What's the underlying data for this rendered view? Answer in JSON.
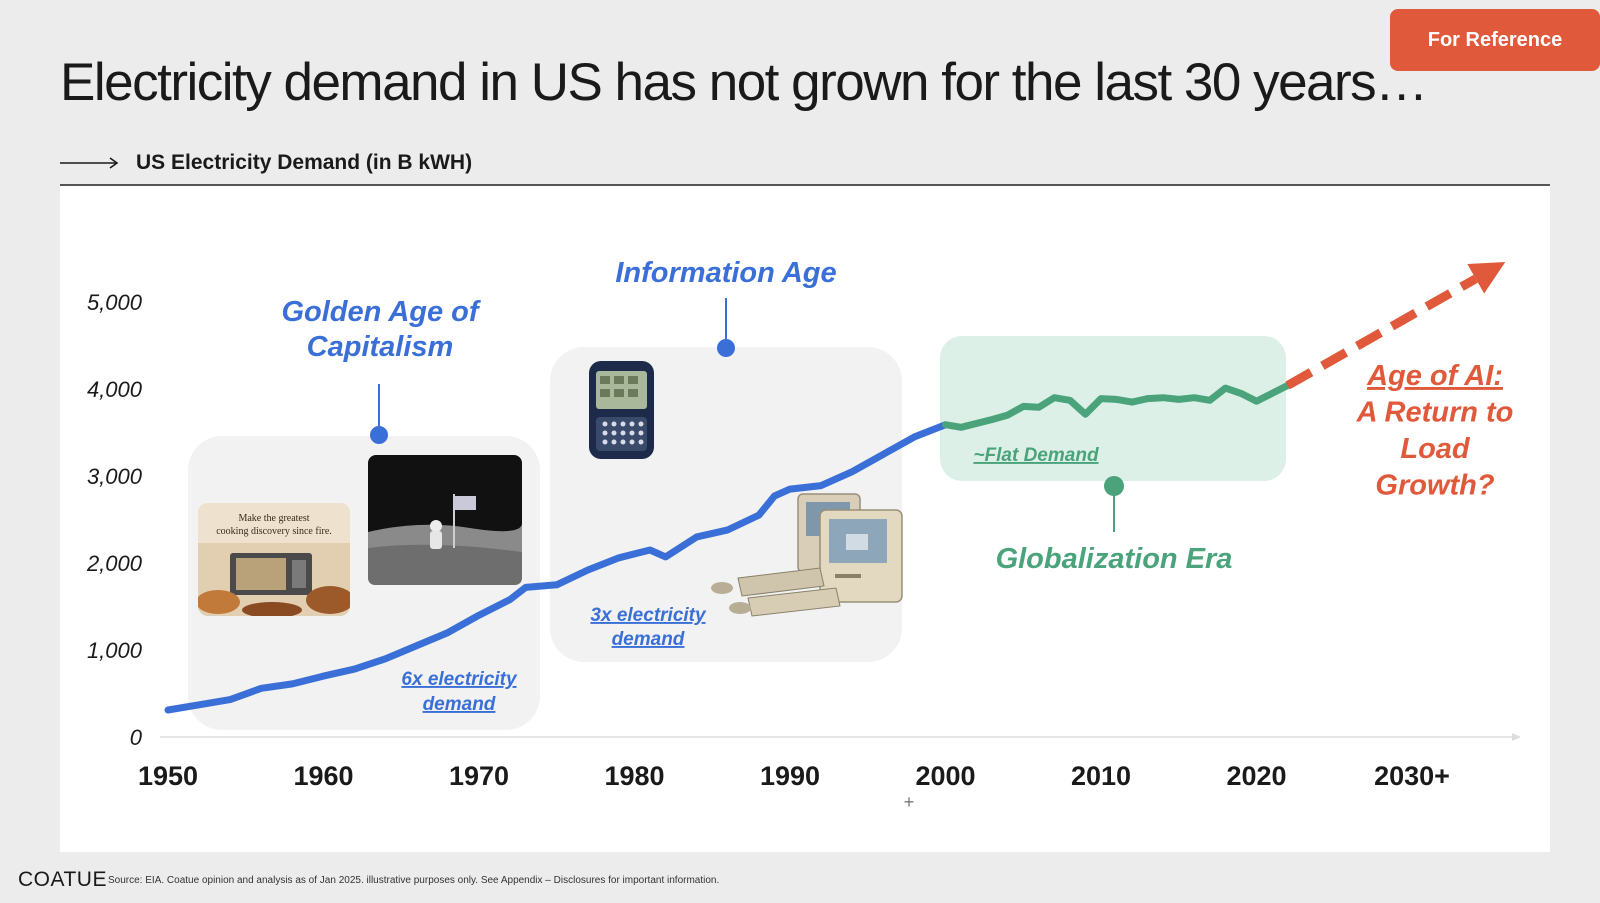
{
  "badge": "For Reference",
  "title": "Electricity demand in US has not grown for the last 30 years…",
  "footer": {
    "logo": "COATUE",
    "source": "Source: EIA. Coatue opinion and analysis as of Jan 2025. illustrative purposes only. See Appendix – Disclosures for important information."
  },
  "colors": {
    "demand_line": "#3a6fd8",
    "flat_line": "#4aa37b",
    "projection": "#e0593a",
    "era_blue": "#3a6fd8",
    "era_green": "#4aa37b"
  },
  "chart_data": {
    "type": "line",
    "title": "US Electricity Demand (in B kWH)",
    "xlabel": "",
    "ylabel": "",
    "x_ticks": [
      "1950",
      "1960",
      "1970",
      "1980",
      "1990",
      "2000",
      "2010",
      "2020",
      "2030+"
    ],
    "y_ticks": [
      "0",
      "1,000",
      "2,000",
      "3,000",
      "4,000",
      "5,000"
    ],
    "ylim": [
      0,
      5000
    ],
    "series": [
      {
        "points": [
          [
            1950,
            310
          ],
          [
            1952,
            370
          ],
          [
            1954,
            430
          ],
          [
            1956,
            560
          ],
          [
            1958,
            610
          ],
          [
            1960,
            700
          ],
          [
            1962,
            780
          ],
          [
            1964,
            900
          ],
          [
            1966,
            1050
          ],
          [
            1968,
            1200
          ],
          [
            1970,
            1400
          ],
          [
            1972,
            1580
          ],
          [
            1973,
            1720
          ],
          [
            1975,
            1750
          ],
          [
            1977,
            1920
          ],
          [
            1979,
            2060
          ],
          [
            1981,
            2150
          ],
          [
            1982,
            2070
          ],
          [
            1984,
            2300
          ],
          [
            1986,
            2380
          ],
          [
            1988,
            2550
          ],
          [
            1989,
            2770
          ],
          [
            1990,
            2850
          ],
          [
            1992,
            2890
          ],
          [
            1994,
            3050
          ],
          [
            1996,
            3250
          ],
          [
            1998,
            3450
          ],
          [
            2000,
            3590
          ]
        ]
      },
      {
        "points": [
          [
            2000,
            3590
          ],
          [
            2001,
            3560
          ],
          [
            2003,
            3650
          ],
          [
            2004,
            3700
          ],
          [
            2005,
            3800
          ],
          [
            2006,
            3790
          ],
          [
            2007,
            3900
          ],
          [
            2008,
            3870
          ],
          [
            2009,
            3710
          ],
          [
            2010,
            3890
          ],
          [
            2011,
            3880
          ],
          [
            2012,
            3850
          ],
          [
            2013,
            3890
          ],
          [
            2014,
            3900
          ],
          [
            2015,
            3880
          ],
          [
            2016,
            3900
          ],
          [
            2017,
            3870
          ],
          [
            2018,
            4010
          ],
          [
            2019,
            3950
          ],
          [
            2020,
            3860
          ],
          [
            2021,
            3950
          ],
          [
            2022,
            4040
          ]
        ]
      }
    ],
    "projection": {
      "style": "dashed-arrow",
      "from": [
        2022,
        4040
      ],
      "to": [
        2036,
        5460
      ]
    },
    "eras": [
      {
        "name": "Golden Age of Capitalism",
        "annotation": "6x electricity demand"
      },
      {
        "name": "Information Age",
        "annotation": "3x electricity demand"
      },
      {
        "name": "Globalization Era",
        "annotation": "~Flat Demand"
      },
      {
        "name": "Age of AI: A Return to Load Growth?",
        "lines": [
          "Age of AI:",
          "A Return to",
          "Load",
          "Growth?"
        ]
      }
    ],
    "grid": false,
    "legend": "none"
  },
  "images": {
    "microwave_ad": "Make the greatest cooking discovery since fire."
  }
}
